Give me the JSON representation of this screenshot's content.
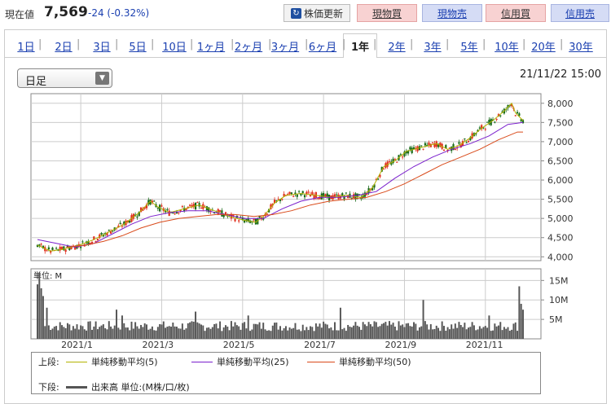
{
  "quote": {
    "label": "現在値",
    "price": "7,569",
    "change": "-24 (-0.32%)"
  },
  "toolbar": {
    "refresh_label": "株価更新",
    "refresh_icon": "refresh-icon",
    "cash_buy": "現物買",
    "cash_sell": "現物売",
    "margin_buy": "信用買",
    "margin_sell": "信用売"
  },
  "periods": [
    "1日",
    "2日",
    "3日",
    "5日",
    "10日",
    "1ヶ月",
    "2ヶ月",
    "3ヶ月",
    "6ヶ月",
    "1年",
    "2年",
    "3年",
    "5年",
    "10年",
    "20年",
    "30年"
  ],
  "active_period": "1年",
  "candle_select": {
    "label": "日足"
  },
  "datetime": "21/11/22 15:00",
  "colors": {
    "up": "#e0301e",
    "down": "#1a6b1a",
    "ma5": "#b3b300",
    "ma25": "#7a1fcc",
    "ma50": "#d94a1a",
    "volume": "#555555",
    "link": "#1a3fb0"
  },
  "legend": {
    "upper_label": "上段:",
    "lower_label": "下段:",
    "ma5": "単純移動平均(5)",
    "ma25": "単純移動平均(25)",
    "ma50": "単純移動平均(50)",
    "volume": "出来高 単位:(M株/口/枚)"
  },
  "chart_data": {
    "type": "line",
    "title": "",
    "x_labels": [
      "2021/1",
      "2021/3",
      "2021/5",
      "2021/7",
      "2021/9",
      "2021/11"
    ],
    "price_axis": {
      "ticks": [
        "8,000",
        "7,500",
        "7,000",
        "6,500",
        "6,000",
        "5,500",
        "5,000",
        "4,500",
        "4,000"
      ],
      "ylim": [
        3900,
        8250
      ]
    },
    "volume_axis": {
      "unit_label": "単位: M",
      "ticks": [
        "15M",
        "10M",
        "5M"
      ],
      "ylim": [
        0,
        18
      ]
    },
    "series": [
      {
        "name": "単純移動平均(5)",
        "points": [
          [
            0,
            4300
          ],
          [
            7,
            4150
          ],
          [
            14,
            4200
          ],
          [
            22,
            4300
          ],
          [
            30,
            4450
          ],
          [
            38,
            4650
          ],
          [
            46,
            4850
          ],
          [
            54,
            5150
          ],
          [
            60,
            5450
          ],
          [
            64,
            5300
          ],
          [
            70,
            5150
          ],
          [
            78,
            5250
          ],
          [
            86,
            5350
          ],
          [
            94,
            5200
          ],
          [
            102,
            5050
          ],
          [
            110,
            4950
          ],
          [
            116,
            4900
          ],
          [
            120,
            5050
          ],
          [
            126,
            5400
          ],
          [
            132,
            5600
          ],
          [
            140,
            5650
          ],
          [
            148,
            5600
          ],
          [
            156,
            5550
          ],
          [
            164,
            5600
          ],
          [
            172,
            5550
          ],
          [
            178,
            5800
          ],
          [
            184,
            6350
          ],
          [
            190,
            6500
          ],
          [
            196,
            6750
          ],
          [
            204,
            6850
          ],
          [
            212,
            6950
          ],
          [
            218,
            6800
          ],
          [
            224,
            6900
          ],
          [
            230,
            7100
          ],
          [
            236,
            7350
          ],
          [
            242,
            7550
          ],
          [
            248,
            7800
          ],
          [
            252,
            8000
          ],
          [
            254,
            7750
          ],
          [
            258,
            7550
          ]
        ]
      },
      {
        "name": "単純移動平均(25)",
        "points": [
          [
            0,
            4450
          ],
          [
            10,
            4350
          ],
          [
            20,
            4250
          ],
          [
            30,
            4350
          ],
          [
            40,
            4600
          ],
          [
            50,
            4850
          ],
          [
            60,
            5050
          ],
          [
            70,
            5150
          ],
          [
            80,
            5200
          ],
          [
            90,
            5200
          ],
          [
            100,
            5100
          ],
          [
            110,
            5000
          ],
          [
            120,
            5000
          ],
          [
            130,
            5250
          ],
          [
            140,
            5450
          ],
          [
            150,
            5550
          ],
          [
            160,
            5550
          ],
          [
            170,
            5600
          ],
          [
            180,
            5700
          ],
          [
            190,
            6050
          ],
          [
            200,
            6350
          ],
          [
            210,
            6600
          ],
          [
            220,
            6800
          ],
          [
            230,
            6950
          ],
          [
            240,
            7150
          ],
          [
            250,
            7450
          ],
          [
            258,
            7500
          ]
        ]
      },
      {
        "name": "単純移動平均(50)",
        "points": [
          [
            15,
            4250
          ],
          [
            25,
            4300
          ],
          [
            35,
            4400
          ],
          [
            45,
            4550
          ],
          [
            55,
            4750
          ],
          [
            65,
            4900
          ],
          [
            75,
            5000
          ],
          [
            85,
            5050
          ],
          [
            95,
            5100
          ],
          [
            105,
            5100
          ],
          [
            115,
            5050
          ],
          [
            125,
            5100
          ],
          [
            135,
            5200
          ],
          [
            145,
            5350
          ],
          [
            155,
            5450
          ],
          [
            165,
            5500
          ],
          [
            175,
            5550
          ],
          [
            185,
            5700
          ],
          [
            195,
            5900
          ],
          [
            205,
            6150
          ],
          [
            215,
            6400
          ],
          [
            225,
            6600
          ],
          [
            235,
            6800
          ],
          [
            245,
            7050
          ],
          [
            255,
            7250
          ],
          [
            258,
            7250
          ]
        ]
      }
    ],
    "volume_spikes": [
      [
        0,
        14
      ],
      [
        1,
        17
      ],
      [
        2,
        13
      ],
      [
        3,
        11
      ],
      [
        5,
        8
      ],
      [
        42,
        7.5
      ],
      [
        45,
        6
      ],
      [
        84,
        7
      ],
      [
        112,
        6
      ],
      [
        161,
        8
      ],
      [
        205,
        10
      ],
      [
        240,
        6
      ],
      [
        256,
        13.5
      ],
      [
        257,
        9
      ],
      [
        258,
        7.5
      ]
    ],
    "n_days": 259,
    "grid": true
  }
}
